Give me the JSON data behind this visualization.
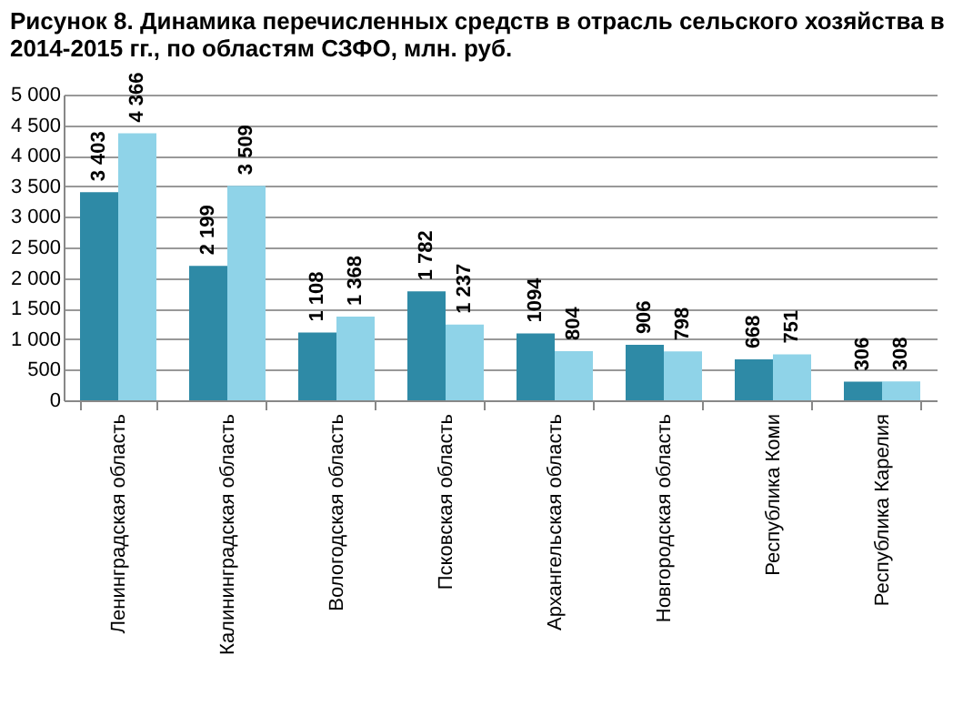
{
  "chart_data": {
    "type": "bar",
    "title": "Рисунок 8. Динамика перечисленных средств в отрасль сельского хозяйства в 2014-2015 гг., по областям СЗФО, млн. руб.",
    "categories": [
      "Ленинградская область",
      "Калининградская область",
      "Вологодская область",
      "Псковская область",
      "Архангельская область",
      "Новгородская область",
      "Республика Коми",
      "Республика Карелия"
    ],
    "series": [
      {
        "color": "#2e8aa6",
        "values": [
          3403,
          2199,
          1108,
          1782,
          1094,
          906,
          668,
          306
        ],
        "value_labels": [
          "3 403",
          "2 199",
          "1 108",
          "1 782",
          "1094",
          "906",
          "668",
          "306"
        ]
      },
      {
        "color": "#8fd3e8",
        "values": [
          4366,
          3509,
          1368,
          1237,
          804,
          798,
          751,
          308
        ],
        "value_labels": [
          "4 366",
          "3 509",
          "1 368",
          "1 237",
          "804",
          "798",
          "751",
          "308"
        ]
      }
    ],
    "ylim": [
      0,
      5000
    ],
    "yticks": [
      {
        "value": 0,
        "label": "0"
      },
      {
        "value": 500,
        "label": "500"
      },
      {
        "value": 1000,
        "label": "1 000"
      },
      {
        "value": 1500,
        "label": "1 500"
      },
      {
        "value": 2000,
        "label": "2 000"
      },
      {
        "value": 2500,
        "label": "2 500"
      },
      {
        "value": 3000,
        "label": "3 000"
      },
      {
        "value": 3500,
        "label": "3 500"
      },
      {
        "value": 4000,
        "label": "4 000"
      },
      {
        "value": 4500,
        "label": "4 500"
      },
      {
        "value": 5000,
        "label": "5 000"
      }
    ],
    "grid": "y",
    "legend": false
  }
}
